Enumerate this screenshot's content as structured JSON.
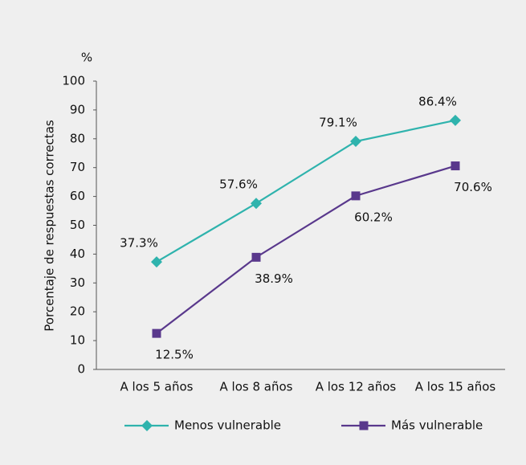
{
  "chart_data": {
    "type": "line",
    "y_unit": "%",
    "ylabel": "Porcentaje de respuestas correctas",
    "categories": [
      "A los 5 años",
      "A los 8 años",
      "A los 12 años",
      "A los 15 años"
    ],
    "series": [
      {
        "name": "Menos vulnerable",
        "color": "#2fb3ad",
        "marker": "diamond",
        "values": [
          37.3,
          57.6,
          79.1,
          86.4
        ],
        "value_labels": [
          "37.3%",
          "57.6%",
          "79.1%",
          "86.4%"
        ],
        "label_position": "above"
      },
      {
        "name": "Más vulnerable",
        "color": "#59388c",
        "marker": "square",
        "values": [
          12.5,
          38.9,
          60.2,
          70.6
        ],
        "value_labels": [
          "12.5%",
          "38.9%",
          "60.2%",
          "70.6%"
        ],
        "label_position": "below"
      }
    ],
    "ylim": [
      0,
      100
    ],
    "yticks": [
      0,
      10,
      20,
      30,
      40,
      50,
      60,
      70,
      80,
      90,
      100
    ],
    "grid": false,
    "legend": "bottom"
  }
}
